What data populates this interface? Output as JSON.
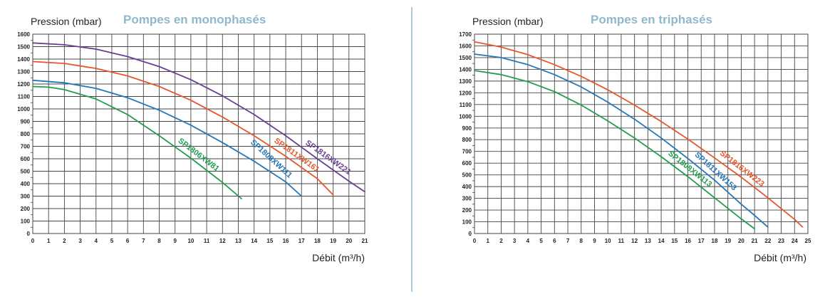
{
  "divider_color": "#8fb8cc",
  "title_color": "#8fb8cc",
  "chart_data": [
    {
      "type": "line",
      "title": "Pompes en monophasés",
      "ylabel": "Pression (mbar)",
      "xlabel": "Débit (m³/h)",
      "xlim": [
        0,
        21
      ],
      "ylim": [
        0,
        1600
      ],
      "xticks": [
        "0",
        "1",
        "2",
        "3",
        "4",
        "5",
        "6",
        "7",
        "8",
        "9",
        "10",
        "11",
        "12",
        "13",
        "14",
        "15",
        "16",
        "17",
        "18",
        "19",
        "20",
        "21"
      ],
      "yticks": [
        "0",
        "100",
        "200",
        "300",
        "400",
        "500",
        "600",
        "700",
        "800",
        "900",
        "1000",
        "1100",
        "1200",
        "1300",
        "1400",
        "1500",
        "1600"
      ],
      "grid": true,
      "series": [
        {
          "name": "SP1816XW221",
          "color": "#6a3f93",
          "x": [
            0,
            2,
            4,
            6,
            8,
            10,
            12,
            14,
            16,
            18,
            20,
            21
          ],
          "y": [
            1530,
            1515,
            1480,
            1420,
            1340,
            1235,
            1105,
            955,
            785,
            600,
            420,
            335
          ]
        },
        {
          "name": "SP1811XW161",
          "color": "#e8552a",
          "x": [
            0,
            2,
            4,
            6,
            8,
            10,
            12,
            14,
            16,
            18,
            19
          ],
          "y": [
            1380,
            1365,
            1325,
            1265,
            1180,
            1070,
            935,
            785,
            620,
            440,
            310
          ]
        },
        {
          "name": "SP1808XW111",
          "color": "#2477b8",
          "x": [
            0,
            2,
            4,
            6,
            8,
            10,
            12,
            14,
            16,
            17
          ],
          "y": [
            1230,
            1210,
            1165,
            1090,
            990,
            870,
            730,
            580,
            415,
            300
          ]
        },
        {
          "name": "SP1806XW81",
          "color": "#1e9e4e",
          "x": [
            0,
            1,
            2,
            4,
            6,
            8,
            10,
            12,
            13.2
          ],
          "y": [
            1180,
            1175,
            1155,
            1080,
            955,
            785,
            605,
            410,
            280
          ]
        }
      ]
    },
    {
      "type": "line",
      "title": "Pompes en triphasés",
      "ylabel": "Pression (mbar)",
      "xlabel": "Débit (m³/h)",
      "xlim": [
        0,
        25
      ],
      "ylim": [
        0,
        1700
      ],
      "xticks": [
        "0",
        "1",
        "2",
        "3",
        "4",
        "5",
        "6",
        "7",
        "8",
        "9",
        "10",
        "11",
        "12",
        "13",
        "14",
        "15",
        "16",
        "17",
        "18",
        "19",
        "20",
        "21",
        "22",
        "23",
        "24",
        "25"
      ],
      "yticks": [
        "0",
        "100",
        "200",
        "300",
        "400",
        "500",
        "600",
        "700",
        "800",
        "900",
        "1000",
        "1100",
        "1200",
        "1300",
        "1400",
        "1500",
        "1600",
        "1700"
      ],
      "grid": true,
      "series": [
        {
          "name": "SP1816XW223",
          "color": "#e8552a",
          "x": [
            0,
            2,
            4,
            6,
            8,
            10,
            12,
            14,
            16,
            18,
            20,
            22,
            24,
            24.6
          ],
          "y": [
            1635,
            1590,
            1525,
            1440,
            1340,
            1225,
            1095,
            955,
            805,
            645,
            480,
            305,
            120,
            55
          ]
        },
        {
          "name": "SP1811XW153",
          "color": "#2477b8",
          "x": [
            0,
            2,
            4,
            6,
            8,
            10,
            12,
            14,
            16,
            18,
            20,
            21,
            22
          ],
          "y": [
            1530,
            1500,
            1440,
            1355,
            1250,
            1120,
            975,
            815,
            640,
            455,
            250,
            155,
            55
          ]
        },
        {
          "name": "SP1808XW113",
          "color": "#1e9e4e",
          "x": [
            0,
            2,
            4,
            6,
            8,
            10,
            12,
            14,
            16,
            18,
            20,
            21
          ],
          "y": [
            1390,
            1355,
            1295,
            1210,
            1095,
            960,
            815,
            655,
            485,
            305,
            125,
            40
          ]
        }
      ]
    }
  ]
}
